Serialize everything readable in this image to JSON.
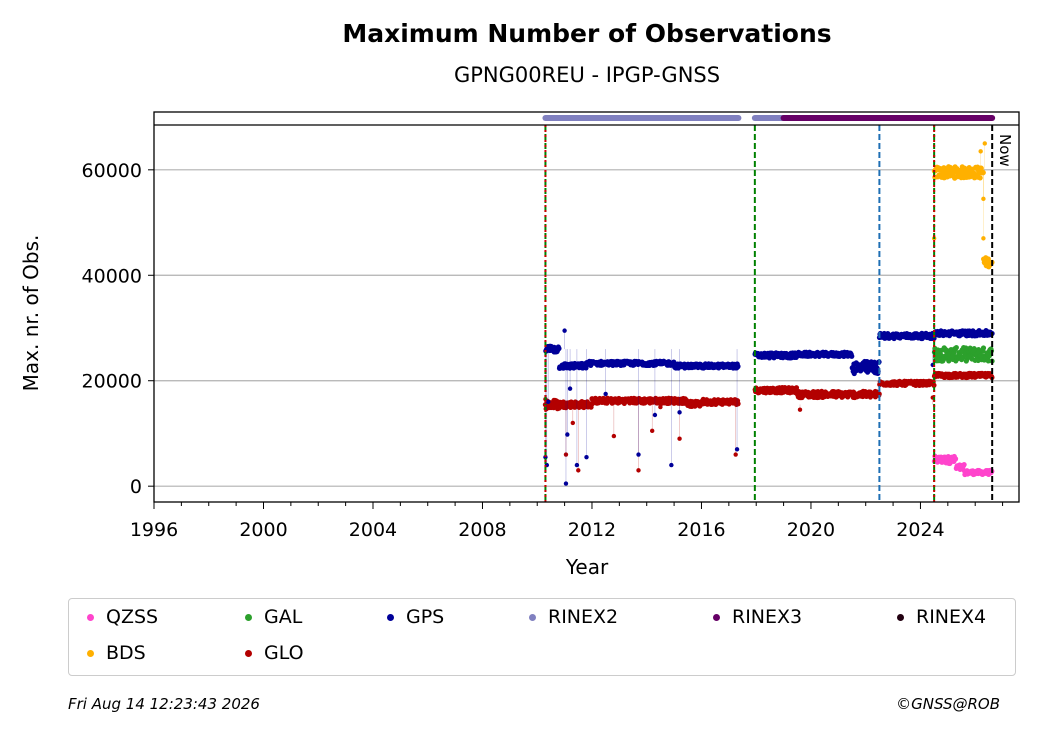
{
  "chart_data": {
    "type": "scatter",
    "title": "Maximum Number of Observations",
    "subtitle": "GPNG00REU - IPGP-GNSS",
    "xlabel": "Year",
    "ylabel": "Max. nr. of Obs.",
    "xlim": [
      1996,
      2027.6
    ],
    "ylim": [
      -3000,
      68500
    ],
    "x_ticks": [
      1996,
      2000,
      2004,
      2008,
      2012,
      2016,
      2020,
      2024
    ],
    "y_ticks": [
      0,
      20000,
      40000,
      60000
    ],
    "grid": "horizontal",
    "now_label": "Now",
    "now_x": 2026.62,
    "vlines": [
      {
        "x": 2010.3,
        "color": "#008000",
        "style": "dashed"
      },
      {
        "x": 2010.3,
        "color": "#cc0000",
        "style": "dotted"
      },
      {
        "x": 2017.95,
        "color": "#008000",
        "style": "dashed"
      },
      {
        "x": 2022.5,
        "color": "#1f6fb4",
        "style": "dashed"
      },
      {
        "x": 2024.5,
        "color": "#008000",
        "style": "dashed"
      },
      {
        "x": 2024.5,
        "color": "#cc0000",
        "style": "dotted"
      }
    ],
    "rinex_bars": [
      {
        "name": "RINEX2",
        "color": "#8080c0",
        "segments": [
          [
            2010.3,
            2017.35
          ],
          [
            2017.95,
            2019.0
          ]
        ]
      },
      {
        "name": "RINEX3",
        "color": "#660066",
        "segments": [
          [
            2019.0,
            2026.62
          ]
        ]
      }
    ],
    "series": [
      {
        "name": "QZSS",
        "color": "#ff44cc",
        "segments": [
          {
            "x0": 2024.5,
            "x1": 2025.3,
            "y": 5000,
            "jitter": 700
          },
          {
            "x0": 2025.3,
            "x1": 2025.6,
            "y": 3500,
            "jitter": 600
          },
          {
            "x0": 2025.6,
            "x1": 2026.62,
            "y": 2600,
            "jitter": 400
          }
        ],
        "outliers": []
      },
      {
        "name": "BDS",
        "color": "#ffb000",
        "segments": [
          {
            "x0": 2024.5,
            "x1": 2026.3,
            "y": 59500,
            "jitter": 1100
          },
          {
            "x0": 2026.3,
            "x1": 2026.62,
            "y": 42500,
            "jitter": 900
          }
        ],
        "outliers": [
          [
            2024.5,
            47000
          ],
          [
            2026.3,
            54500
          ],
          [
            2026.3,
            47000
          ],
          [
            2026.2,
            63500
          ],
          [
            2026.35,
            65000
          ]
        ]
      },
      {
        "name": "GAL",
        "color": "#2ca02c",
        "segments": [
          {
            "x0": 2024.5,
            "x1": 2026.62,
            "y": 25000,
            "jitter": 1300
          }
        ],
        "outliers": []
      },
      {
        "name": "GLO",
        "color": "#b30000",
        "segments": [
          {
            "x0": 2010.3,
            "x1": 2010.8,
            "y": 15500,
            "jitter": 900
          },
          {
            "x0": 2010.8,
            "x1": 2012.0,
            "y": 15500,
            "jitter": 600
          },
          {
            "x0": 2012.0,
            "x1": 2015.5,
            "y": 16200,
            "jitter": 500
          },
          {
            "x0": 2015.5,
            "x1": 2016.0,
            "y": 15600,
            "jitter": 500
          },
          {
            "x0": 2016.0,
            "x1": 2017.35,
            "y": 16000,
            "jitter": 500
          },
          {
            "x0": 2017.95,
            "x1": 2019.5,
            "y": 18200,
            "jitter": 500
          },
          {
            "x0": 2019.5,
            "x1": 2022.5,
            "y": 17400,
            "jitter": 600
          },
          {
            "x0": 2022.5,
            "x1": 2024.5,
            "y": 19500,
            "jitter": 400
          },
          {
            "x0": 2024.5,
            "x1": 2026.62,
            "y": 21000,
            "jitter": 400
          }
        ],
        "outliers": [
          [
            2010.3,
            16500
          ],
          [
            2011.05,
            6000
          ],
          [
            2011.3,
            12000
          ],
          [
            2011.5,
            3000
          ],
          [
            2012.8,
            9500
          ],
          [
            2013.7,
            3000
          ],
          [
            2014.2,
            10500
          ],
          [
            2014.5,
            15000
          ],
          [
            2015.2,
            9000
          ],
          [
            2017.25,
            6000
          ],
          [
            2019.6,
            14500
          ],
          [
            2024.45,
            16800
          ]
        ]
      },
      {
        "name": "GPS",
        "color": "#000099",
        "segments": [
          {
            "x0": 2010.3,
            "x1": 2010.8,
            "y": 26000,
            "jitter": 700
          },
          {
            "x0": 2010.8,
            "x1": 2011.8,
            "y": 22800,
            "jitter": 500
          },
          {
            "x0": 2011.8,
            "x1": 2015.0,
            "y": 23300,
            "jitter": 400
          },
          {
            "x0": 2015.0,
            "x1": 2017.35,
            "y": 22800,
            "jitter": 400
          },
          {
            "x0": 2017.95,
            "x1": 2019.5,
            "y": 24800,
            "jitter": 500
          },
          {
            "x0": 2019.5,
            "x1": 2021.5,
            "y": 25000,
            "jitter": 400
          },
          {
            "x0": 2021.5,
            "x1": 2022.5,
            "y": 22500,
            "jitter": 1200
          },
          {
            "x0": 2022.5,
            "x1": 2024.5,
            "y": 28500,
            "jitter": 500
          },
          {
            "x0": 2024.5,
            "x1": 2026.62,
            "y": 29000,
            "jitter": 500
          }
        ],
        "outliers": [
          [
            2010.3,
            5500
          ],
          [
            2010.35,
            4000
          ],
          [
            2010.4,
            16000
          ],
          [
            2011.0,
            29500
          ],
          [
            2011.05,
            500
          ],
          [
            2011.1,
            9800
          ],
          [
            2011.2,
            18500
          ],
          [
            2011.45,
            4000
          ],
          [
            2011.8,
            5500
          ],
          [
            2012.5,
            17500
          ],
          [
            2013.7,
            6000
          ],
          [
            2014.3,
            13500
          ],
          [
            2014.9,
            4000
          ],
          [
            2015.2,
            14000
          ],
          [
            2017.3,
            7000
          ],
          [
            2024.45,
            23000
          ]
        ]
      }
    ]
  },
  "legend": {
    "items": [
      {
        "label": "QZSS",
        "color": "#ff44cc"
      },
      {
        "label": "BDS",
        "color": "#ffb000"
      },
      {
        "label": "GAL",
        "color": "#2ca02c"
      },
      {
        "label": "GLO",
        "color": "#b30000"
      },
      {
        "label": "GPS",
        "color": "#000099"
      },
      {
        "label": "RINEX2",
        "color": "#8080c0"
      },
      {
        "label": "RINEX3",
        "color": "#660066"
      },
      {
        "label": "RINEX4",
        "color": "#220011"
      }
    ]
  },
  "footer": {
    "timestamp": "Fri Aug 14 12:23:43 2026",
    "copyright": "©GNSS@ROB"
  }
}
